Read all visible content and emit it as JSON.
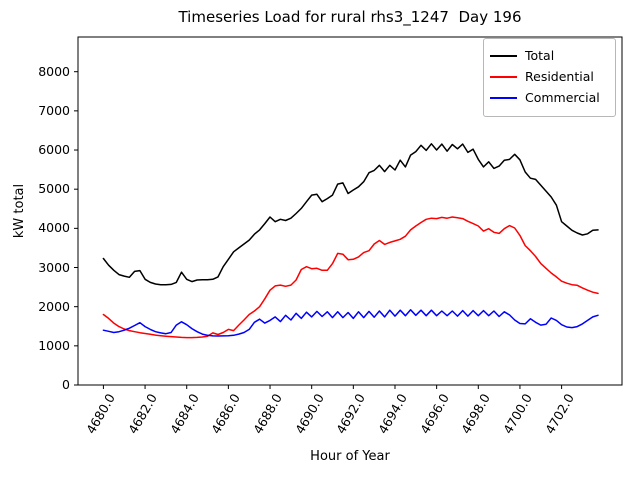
{
  "title": "Timeseries Load for rural rhs3_1247  Day 196",
  "legend": {
    "entries": [
      {
        "label": "Total",
        "color": "#000000"
      },
      {
        "label": "Residential",
        "color": "#ff0000"
      },
      {
        "label": "Commercial",
        "color": "#0000ff"
      }
    ]
  },
  "chart_data": {
    "type": "line",
    "title": "Timeseries Load for rural rhs3_1247  Day 196",
    "xlabel": "Hour of Year",
    "ylabel": "kW total",
    "xlim": [
      4678.78,
      4704.9
    ],
    "ylim": [
      0,
      8886
    ],
    "grid": false,
    "legend_position": "upper right",
    "x_ticks": [
      4680,
      4682,
      4684,
      4686,
      4688,
      4690,
      4692,
      4694,
      4696,
      4698,
      4700,
      4702
    ],
    "x_tick_labels": [
      "4680.0",
      "4682.0",
      "4684.0",
      "4686.0",
      "4688.0",
      "4690.0",
      "4692.0",
      "4694.0",
      "4696.0",
      "4698.0",
      "4700.0",
      "4702.0"
    ],
    "y_ticks": [
      0,
      1000,
      2000,
      3000,
      4000,
      5000,
      6000,
      7000,
      8000
    ],
    "y_tick_labels": [
      "0",
      "1000",
      "2000",
      "3000",
      "4000",
      "5000",
      "6000",
      "7000",
      "8000"
    ],
    "x": [
      4680.0,
      4680.25,
      4680.5,
      4680.75,
      4681.0,
      4681.25,
      4681.5,
      4681.75,
      4682.0,
      4682.25,
      4682.5,
      4682.75,
      4683.0,
      4683.25,
      4683.5,
      4683.75,
      4684.0,
      4684.25,
      4684.5,
      4684.75,
      4685.0,
      4685.25,
      4685.5,
      4685.75,
      4686.0,
      4686.25,
      4686.5,
      4686.75,
      4687.0,
      4687.25,
      4687.5,
      4687.75,
      4688.0,
      4688.25,
      4688.5,
      4688.75,
      4689.0,
      4689.25,
      4689.5,
      4689.75,
      4690.0,
      4690.25,
      4690.5,
      4690.75,
      4691.0,
      4691.25,
      4691.5,
      4691.75,
      4692.0,
      4692.25,
      4692.5,
      4692.75,
      4693.0,
      4693.25,
      4693.5,
      4693.75,
      4694.0,
      4694.25,
      4694.5,
      4694.75,
      4695.0,
      4695.25,
      4695.5,
      4695.75,
      4696.0,
      4696.25,
      4696.5,
      4696.75,
      4697.0,
      4697.25,
      4697.5,
      4697.75,
      4698.0,
      4698.25,
      4698.5,
      4698.75,
      4699.0,
      4699.25,
      4699.5,
      4699.75,
      4700.0,
      4700.25,
      4700.5,
      4700.75,
      4701.0,
      4701.25,
      4701.5,
      4701.75,
      4702.0,
      4702.25,
      4702.5,
      4702.75,
      4703.0,
      4703.25,
      4703.5,
      4703.75
    ],
    "series": [
      {
        "name": "Total",
        "color": "#000000",
        "values": [
          3230,
          3060,
          2930,
          2820,
          2780,
          2750,
          2900,
          2920,
          2700,
          2620,
          2580,
          2560,
          2560,
          2570,
          2620,
          2880,
          2700,
          2640,
          2680,
          2690,
          2690,
          2700,
          2760,
          3020,
          3210,
          3400,
          3500,
          3600,
          3700,
          3850,
          3960,
          4120,
          4290,
          4170,
          4230,
          4200,
          4260,
          4380,
          4510,
          4680,
          4850,
          4870,
          4680,
          4760,
          4850,
          5130,
          5160,
          4890,
          4980,
          5060,
          5190,
          5420,
          5480,
          5610,
          5450,
          5610,
          5490,
          5740,
          5570,
          5870,
          5960,
          6120,
          5990,
          6160,
          6000,
          6150,
          5970,
          6140,
          6030,
          6150,
          5940,
          6020,
          5760,
          5570,
          5700,
          5530,
          5590,
          5740,
          5760,
          5890,
          5750,
          5440,
          5280,
          5250,
          5100,
          4950,
          4800,
          4590,
          4170,
          4060,
          3950,
          3880,
          3830,
          3860,
          3950,
          3960
        ]
      },
      {
        "name": "Residential",
        "color": "#ff0000",
        "values": [
          1800,
          1700,
          1580,
          1490,
          1430,
          1390,
          1360,
          1335,
          1315,
          1295,
          1275,
          1260,
          1245,
          1235,
          1225,
          1215,
          1210,
          1210,
          1215,
          1225,
          1245,
          1330,
          1290,
          1340,
          1420,
          1390,
          1530,
          1660,
          1800,
          1890,
          2000,
          2200,
          2420,
          2530,
          2550,
          2520,
          2550,
          2680,
          2950,
          3020,
          2970,
          2980,
          2930,
          2930,
          3100,
          3360,
          3340,
          3200,
          3210,
          3270,
          3380,
          3430,
          3600,
          3690,
          3590,
          3640,
          3680,
          3720,
          3800,
          3960,
          4060,
          4150,
          4230,
          4260,
          4250,
          4280,
          4260,
          4290,
          4270,
          4250,
          4180,
          4120,
          4060,
          3930,
          3990,
          3900,
          3870,
          3990,
          4070,
          4010,
          3820,
          3560,
          3430,
          3280,
          3100,
          2980,
          2860,
          2760,
          2650,
          2600,
          2560,
          2545,
          2480,
          2420,
          2370,
          2340
        ]
      },
      {
        "name": "Commercial",
        "color": "#0000ff",
        "values": [
          1400,
          1370,
          1340,
          1360,
          1400,
          1450,
          1520,
          1590,
          1490,
          1420,
          1360,
          1330,
          1310,
          1340,
          1530,
          1615,
          1540,
          1440,
          1360,
          1300,
          1270,
          1255,
          1250,
          1255,
          1260,
          1270,
          1300,
          1340,
          1420,
          1600,
          1680,
          1580,
          1650,
          1740,
          1620,
          1780,
          1660,
          1830,
          1700,
          1860,
          1740,
          1880,
          1750,
          1870,
          1720,
          1870,
          1720,
          1850,
          1700,
          1870,
          1720,
          1880,
          1730,
          1890,
          1740,
          1910,
          1760,
          1910,
          1770,
          1920,
          1780,
          1910,
          1770,
          1910,
          1770,
          1890,
          1770,
          1890,
          1760,
          1900,
          1760,
          1900,
          1770,
          1900,
          1770,
          1890,
          1750,
          1870,
          1790,
          1660,
          1570,
          1560,
          1690,
          1600,
          1530,
          1550,
          1710,
          1650,
          1540,
          1480,
          1465,
          1490,
          1560,
          1650,
          1740,
          1780
        ]
      }
    ]
  }
}
